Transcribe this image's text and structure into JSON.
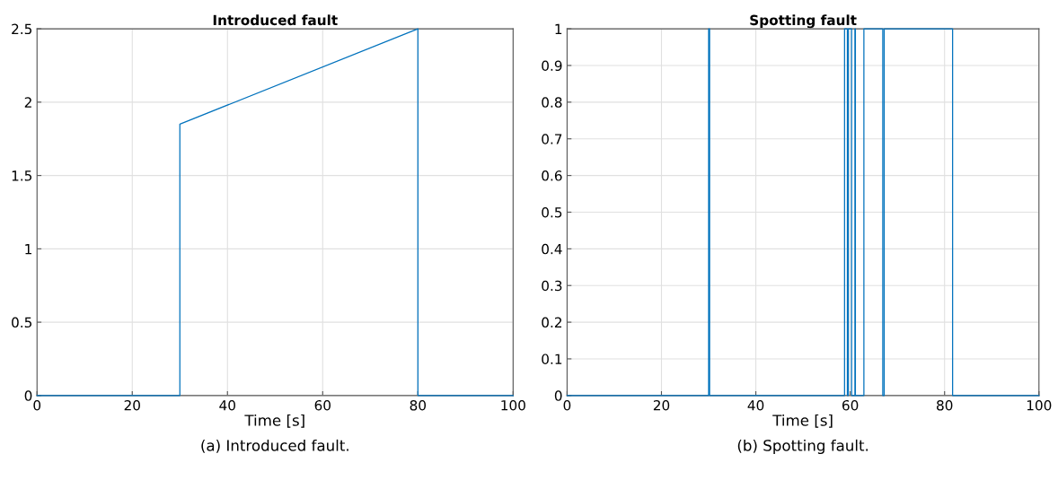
{
  "chart_data": [
    {
      "type": "line",
      "title": "Introduced fault",
      "xlabel": "Time [s]",
      "annotations": [
        "(a) Introduced fault."
      ],
      "grid": true,
      "xlim": [
        0,
        100
      ],
      "ylim": [
        0,
        2.5
      ],
      "xticks": [
        0,
        20,
        40,
        60,
        80,
        100
      ],
      "yticks": [
        0,
        0.5,
        1,
        1.5,
        2,
        2.5
      ],
      "series": [
        {
          "color": "#0072bd",
          "x": [
            0,
            30,
            30,
            80,
            80,
            100
          ],
          "values": [
            0,
            0,
            1.85,
            2.5,
            0,
            0
          ]
        }
      ]
    },
    {
      "type": "line",
      "title": "Spotting fault",
      "xlabel": "Time [s]",
      "annotations": [
        "(b) Spotting fault."
      ],
      "grid": true,
      "xlim": [
        0,
        100
      ],
      "ylim": [
        0,
        1
      ],
      "xticks": [
        0,
        20,
        40,
        60,
        80,
        100
      ],
      "yticks": [
        0,
        0.1,
        0.2,
        0.3,
        0.4,
        0.5,
        0.6,
        0.7,
        0.8,
        0.9,
        1
      ],
      "series": [
        {
          "color": "#0072bd",
          "x": [
            0,
            30,
            30,
            30.2,
            30.2,
            58.8,
            58.8,
            59.4,
            59.4,
            59.6,
            59.6,
            60.3,
            60.3,
            61.0,
            61.0,
            61.1,
            61.1,
            62.9,
            62.9,
            66.9,
            66.9,
            67.2,
            67.2,
            81.7,
            81.7,
            100
          ],
          "values": [
            0,
            0,
            1,
            1,
            0,
            0,
            1,
            1,
            0,
            0,
            1,
            1,
            0,
            0,
            1,
            1,
            0,
            0,
            1,
            1,
            0,
            0,
            1,
            1,
            0,
            0
          ]
        }
      ]
    }
  ]
}
